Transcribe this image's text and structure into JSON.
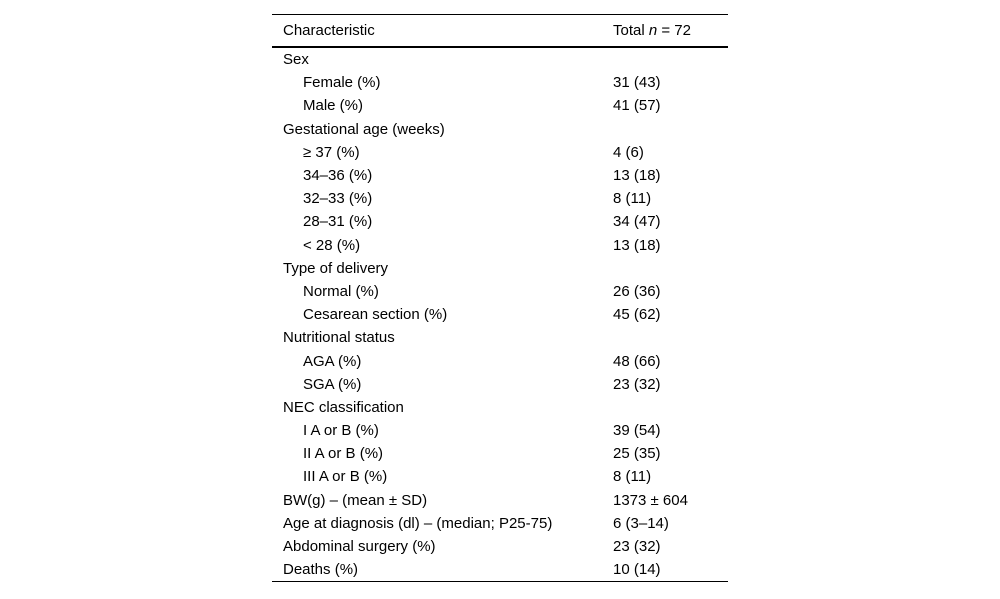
{
  "table": {
    "header": {
      "characteristic": "Characteristic",
      "total_prefix": "Total ",
      "total_n": "n",
      "total_suffix": " = 72"
    },
    "rows": [
      {
        "label": "Sex",
        "indent": false,
        "value": ""
      },
      {
        "label": "Female (%)",
        "indent": true,
        "value": "31 (43)"
      },
      {
        "label": "Male (%)",
        "indent": true,
        "value": "41 (57)"
      },
      {
        "label": "Gestational age (weeks)",
        "indent": false,
        "value": ""
      },
      {
        "label": "≥ 37 (%)",
        "indent": true,
        "value": "4 (6)"
      },
      {
        "label": "34–36 (%)",
        "indent": true,
        "value": "13 (18)"
      },
      {
        "label": "32–33 (%)",
        "indent": true,
        "value": "8 (11)"
      },
      {
        "label": "28–31 (%)",
        "indent": true,
        "value": "34 (47)"
      },
      {
        "label": "< 28 (%)",
        "indent": true,
        "value": "13 (18)"
      },
      {
        "label": "Type of delivery",
        "indent": false,
        "value": ""
      },
      {
        "label": "Normal (%)",
        "indent": true,
        "value": "26 (36)"
      },
      {
        "label": "Cesarean section (%)",
        "indent": true,
        "value": "45 (62)"
      },
      {
        "label": "Nutritional status",
        "indent": false,
        "value": ""
      },
      {
        "label": "AGA (%)",
        "indent": true,
        "value": "48 (66)"
      },
      {
        "label": "SGA (%)",
        "indent": true,
        "value": "23 (32)"
      },
      {
        "label": "NEC classification",
        "indent": false,
        "value": ""
      },
      {
        "label": "I A or B (%)",
        "indent": true,
        "value": "39 (54)"
      },
      {
        "label": "II A or B (%)",
        "indent": true,
        "value": "25 (35)"
      },
      {
        "label": "III A or B (%)",
        "indent": true,
        "value": "8 (11)"
      },
      {
        "label": "BW(g) – (mean ± SD)",
        "indent": false,
        "value": "1373 ± 604"
      },
      {
        "label": "Age at diagnosis (dl) – (median; P25-75)",
        "indent": false,
        "value": "6 (3–14)"
      },
      {
        "label": "Abdominal surgery (%)",
        "indent": false,
        "value": "23 (32)"
      },
      {
        "label": "Deaths (%)",
        "indent": false,
        "value": "10 (14)"
      }
    ],
    "colors": {
      "text": "#000000",
      "background": "#ffffff",
      "rule": "#000000"
    }
  }
}
